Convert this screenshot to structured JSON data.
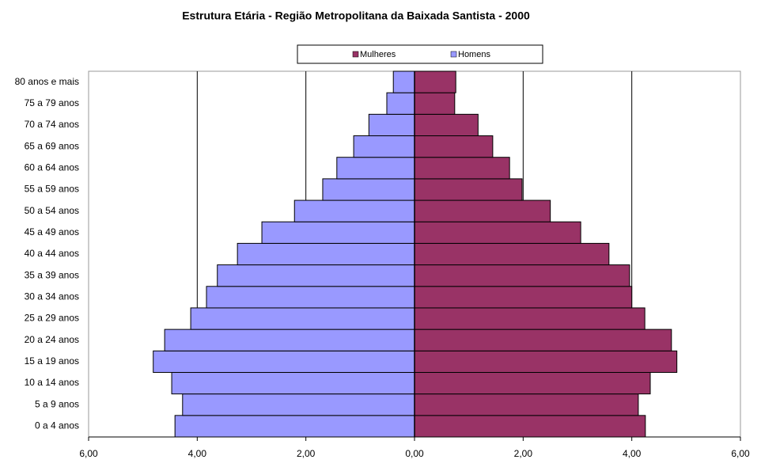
{
  "chart_data": {
    "type": "pyramid",
    "title": "Estrutura Etária - Região Metropolitana da Baixada Santista - 2000",
    "categories": [
      "0 a 4 anos",
      "5 a 9 anos",
      "10 a 14 anos",
      "15 a 19 anos",
      "20 a 24 anos",
      "25 a 29 anos",
      "30 a 34 anos",
      "35 a 39 anos",
      "40 a 44 anos",
      "45 a 49 anos",
      "50 a 54 anos",
      "55 a 59 anos",
      "60 a 64 anos",
      "65 a 69 anos",
      "70 a 74 anos",
      "75 a 79 anos",
      "80 anos e mais"
    ],
    "series": [
      {
        "name": "Mulheres",
        "color": "#993366",
        "values": [
          4.25,
          4.12,
          4.34,
          4.83,
          4.73,
          4.24,
          4.0,
          3.96,
          3.58,
          3.06,
          2.5,
          1.98,
          1.75,
          1.44,
          1.17,
          0.74,
          0.76
        ]
      },
      {
        "name": "Homens",
        "color": "#9999ff",
        "values": [
          -4.41,
          -4.27,
          -4.47,
          -4.81,
          -4.6,
          -4.12,
          -3.83,
          -3.63,
          -3.26,
          -2.81,
          -2.21,
          -1.69,
          -1.43,
          -1.12,
          -0.84,
          -0.51,
          -0.39
        ]
      }
    ],
    "xlim": [
      -6,
      6
    ],
    "xticks": [
      {
        "value": -6,
        "label": "6,00"
      },
      {
        "value": -4,
        "label": "4,00"
      },
      {
        "value": -2,
        "label": "2,00"
      },
      {
        "value": 0,
        "label": "0,00"
      },
      {
        "value": 2,
        "label": "2,00"
      },
      {
        "value": 4,
        "label": "4,00"
      },
      {
        "value": 6,
        "label": "6,00"
      }
    ],
    "grid": true,
    "legend": "top"
  }
}
